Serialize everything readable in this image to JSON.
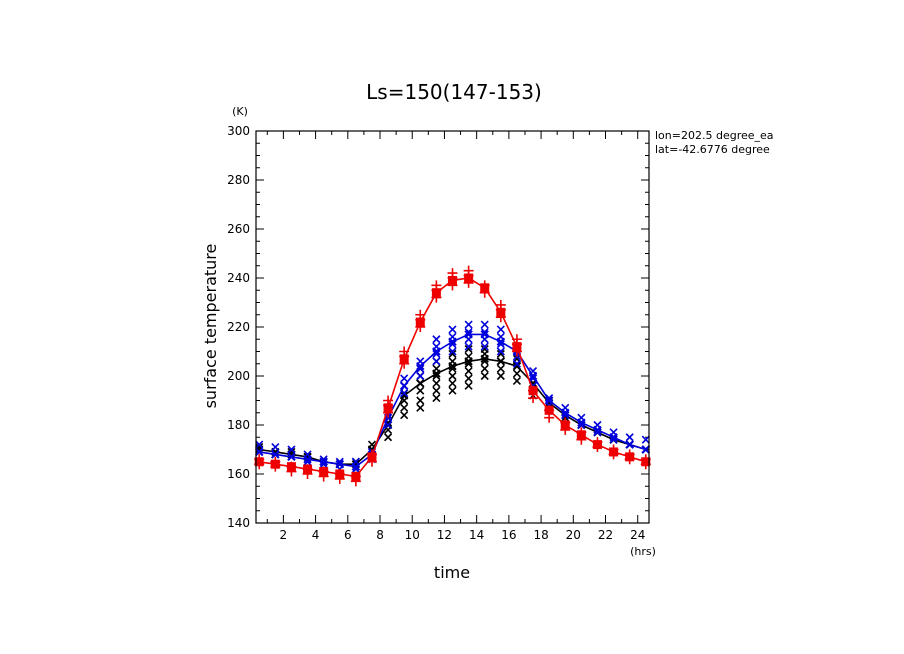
{
  "chart_data": {
    "type": "line",
    "title": "Ls=150(147-153)",
    "xlabel": "time",
    "ylabel": "surface temperature",
    "x_unit": "(hrs)",
    "y_unit": "(K)",
    "annotations": [
      "lon=202.5 degree_ea",
      "lat=-42.6776 degree"
    ],
    "xlim": [
      0.3,
      24.7
    ],
    "ylim": [
      140,
      300
    ],
    "xticks": [
      2,
      4,
      6,
      8,
      10,
      12,
      14,
      16,
      18,
      20,
      22,
      24
    ],
    "yticks": [
      140,
      160,
      180,
      200,
      220,
      240,
      260,
      280,
      300
    ],
    "grid": false,
    "x": [
      0.5,
      1.5,
      2.5,
      3.5,
      4.5,
      5.5,
      6.5,
      7.5,
      8.5,
      9.5,
      10.5,
      11.5,
      12.5,
      13.5,
      14.5,
      15.5,
      16.5,
      17.5,
      18.5,
      19.5,
      20.5,
      21.5,
      22.5,
      23.5,
      24.5
    ],
    "series": [
      {
        "color": "#000000",
        "marker": "x",
        "values": [
          170,
          169,
          168,
          167,
          165,
          164,
          164,
          170,
          180,
          192,
          197,
          201,
          204,
          206,
          207,
          206,
          204,
          197,
          189,
          184,
          180,
          177,
          174,
          172,
          170
        ],
        "scatter": [
          [
            0.5,
            171
          ],
          [
            0.5,
            169
          ],
          [
            1.5,
            168
          ],
          [
            2.5,
            169
          ],
          [
            3.5,
            167
          ],
          [
            4.5,
            165
          ],
          [
            5.5,
            164
          ],
          [
            6.5,
            165
          ],
          [
            7.5,
            169
          ],
          [
            7.5,
            172
          ],
          [
            8.5,
            175
          ],
          [
            8.5,
            178
          ],
          [
            8.5,
            181
          ],
          [
            8.5,
            184
          ],
          [
            9.5,
            184
          ],
          [
            9.5,
            187
          ],
          [
            9.5,
            190
          ],
          [
            9.5,
            193
          ],
          [
            9.5,
            196
          ],
          [
            10.5,
            187
          ],
          [
            10.5,
            190
          ],
          [
            10.5,
            194
          ],
          [
            10.5,
            197
          ],
          [
            10.5,
            200
          ],
          [
            10.5,
            203
          ],
          [
            11.5,
            191
          ],
          [
            11.5,
            194
          ],
          [
            11.5,
            197
          ],
          [
            11.5,
            200
          ],
          [
            11.5,
            203
          ],
          [
            11.5,
            206
          ],
          [
            12.5,
            194
          ],
          [
            12.5,
            197
          ],
          [
            12.5,
            200
          ],
          [
            12.5,
            203
          ],
          [
            12.5,
            206
          ],
          [
            12.5,
            209
          ],
          [
            13.5,
            196
          ],
          [
            13.5,
            199
          ],
          [
            13.5,
            202
          ],
          [
            13.5,
            205
          ],
          [
            13.5,
            208
          ],
          [
            13.5,
            211
          ],
          [
            14.5,
            200
          ],
          [
            14.5,
            203
          ],
          [
            14.5,
            206
          ],
          [
            14.5,
            209
          ],
          [
            14.5,
            211
          ],
          [
            15.5,
            200
          ],
          [
            15.5,
            203
          ],
          [
            15.5,
            206
          ],
          [
            15.5,
            209
          ],
          [
            16.5,
            198
          ],
          [
            16.5,
            201
          ],
          [
            16.5,
            204
          ],
          [
            16.5,
            207
          ],
          [
            17.5,
            192
          ],
          [
            17.5,
            196
          ],
          [
            17.5,
            200
          ],
          [
            18.5,
            186
          ],
          [
            18.5,
            190
          ],
          [
            19.5,
            183
          ],
          [
            20.5,
            180
          ],
          [
            21.5,
            177
          ],
          [
            22.5,
            174
          ],
          [
            23.5,
            172
          ],
          [
            24.5,
            170
          ]
        ]
      },
      {
        "color": "#0000dd",
        "marker": "x",
        "values": [
          169,
          168,
          167,
          166,
          165,
          164,
          163,
          168,
          183,
          196,
          204,
          210,
          214,
          217,
          217,
          214,
          210,
          200,
          190,
          185,
          181,
          178,
          175,
          172,
          170
        ],
        "scatter": [
          [
            0.5,
            172
          ],
          [
            0.5,
            169
          ],
          [
            1.5,
            171
          ],
          [
            1.5,
            168
          ],
          [
            2.5,
            170
          ],
          [
            2.5,
            167
          ],
          [
            3.5,
            168
          ],
          [
            3.5,
            165
          ],
          [
            4.5,
            166
          ],
          [
            4.5,
            164
          ],
          [
            5.5,
            165
          ],
          [
            5.5,
            162
          ],
          [
            6.5,
            165
          ],
          [
            6.5,
            162
          ],
          [
            7.5,
            166
          ],
          [
            7.5,
            169
          ],
          [
            8.5,
            180
          ],
          [
            8.5,
            184
          ],
          [
            8.5,
            187
          ],
          [
            9.5,
            193
          ],
          [
            9.5,
            196
          ],
          [
            9.5,
            199
          ],
          [
            10.5,
            200
          ],
          [
            10.5,
            203
          ],
          [
            10.5,
            206
          ],
          [
            11.5,
            206
          ],
          [
            11.5,
            209
          ],
          [
            11.5,
            212
          ],
          [
            11.5,
            215
          ],
          [
            12.5,
            210
          ],
          [
            12.5,
            213
          ],
          [
            12.5,
            216
          ],
          [
            12.5,
            219
          ],
          [
            13.5,
            212
          ],
          [
            13.5,
            215
          ],
          [
            13.5,
            218
          ],
          [
            13.5,
            221
          ],
          [
            14.5,
            212
          ],
          [
            14.5,
            215
          ],
          [
            14.5,
            218
          ],
          [
            14.5,
            221
          ],
          [
            15.5,
            210
          ],
          [
            15.5,
            213
          ],
          [
            15.5,
            216
          ],
          [
            15.5,
            219
          ],
          [
            16.5,
            205
          ],
          [
            16.5,
            208
          ],
          [
            16.5,
            211
          ],
          [
            17.5,
            196
          ],
          [
            17.5,
            199
          ],
          [
            17.5,
            202
          ],
          [
            18.5,
            188
          ],
          [
            18.5,
            191
          ],
          [
            19.5,
            184
          ],
          [
            19.5,
            187
          ],
          [
            20.5,
            180
          ],
          [
            20.5,
            183
          ],
          [
            21.5,
            177
          ],
          [
            21.5,
            180
          ],
          [
            22.5,
            174
          ],
          [
            22.5,
            177
          ],
          [
            23.5,
            172
          ],
          [
            23.5,
            175
          ],
          [
            24.5,
            170
          ],
          [
            24.5,
            174
          ]
        ]
      },
      {
        "color": "#ee0000",
        "marker": "square-plus",
        "values": [
          165,
          164,
          163,
          162,
          161,
          160,
          159,
          167,
          187,
          207,
          222,
          234,
          239,
          240,
          236,
          226,
          212,
          194,
          186,
          180,
          176,
          172,
          169,
          167,
          165
        ],
        "scatter": [
          [
            0.5,
            166
          ],
          [
            0.5,
            164
          ],
          [
            1.5,
            165
          ],
          [
            1.5,
            163
          ],
          [
            2.5,
            163
          ],
          [
            2.5,
            161
          ],
          [
            3.5,
            162
          ],
          [
            3.5,
            160
          ],
          [
            4.5,
            161
          ],
          [
            4.5,
            159
          ],
          [
            5.5,
            160
          ],
          [
            5.5,
            158
          ],
          [
            6.5,
            159
          ],
          [
            6.5,
            157
          ],
          [
            7.5,
            165
          ],
          [
            7.5,
            168
          ],
          [
            8.5,
            185
          ],
          [
            8.5,
            188
          ],
          [
            8.5,
            190
          ],
          [
            9.5,
            205
          ],
          [
            9.5,
            208
          ],
          [
            9.5,
            210
          ],
          [
            10.5,
            220
          ],
          [
            10.5,
            223
          ],
          [
            10.5,
            225
          ],
          [
            11.5,
            232
          ],
          [
            11.5,
            235
          ],
          [
            11.5,
            237
          ],
          [
            12.5,
            237
          ],
          [
            12.5,
            240
          ],
          [
            12.5,
            242
          ],
          [
            13.5,
            238
          ],
          [
            13.5,
            241
          ],
          [
            13.5,
            243
          ],
          [
            14.5,
            234
          ],
          [
            14.5,
            237
          ],
          [
            15.5,
            224
          ],
          [
            15.5,
            227
          ],
          [
            15.5,
            229
          ],
          [
            16.5,
            210
          ],
          [
            16.5,
            213
          ],
          [
            16.5,
            215
          ],
          [
            17.5,
            191
          ],
          [
            17.5,
            194
          ],
          [
            18.5,
            183
          ],
          [
            18.5,
            186
          ],
          [
            19.5,
            178
          ],
          [
            19.5,
            181
          ],
          [
            20.5,
            174
          ],
          [
            20.5,
            177
          ],
          [
            21.5,
            171
          ],
          [
            21.5,
            173
          ],
          [
            22.5,
            168
          ],
          [
            22.5,
            170
          ],
          [
            23.5,
            166
          ],
          [
            23.5,
            168
          ],
          [
            24.5,
            164
          ],
          [
            24.5,
            166
          ]
        ]
      }
    ]
  }
}
